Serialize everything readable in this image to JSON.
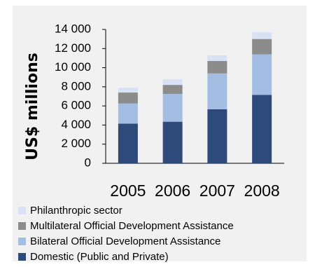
{
  "chart_data": {
    "type": "bar",
    "stacked": true,
    "categories": [
      "2005",
      "2006",
      "2007",
      "2008"
    ],
    "ylabel": "US$ millions",
    "ylim": [
      0,
      14000
    ],
    "yticks": [
      0,
      2000,
      4000,
      6000,
      8000,
      10000,
      12000,
      14000
    ],
    "ytick_labels": [
      "0",
      "2 000",
      "4 000",
      "6 000",
      "8 000",
      "10 000",
      "12 000",
      "14 000"
    ],
    "series": [
      {
        "name": "Domestic (Public and Private)",
        "color": "#2e4a7a",
        "values": [
          4150,
          4350,
          5650,
          7150
        ]
      },
      {
        "name": "Bilateral Official Development Assistance",
        "color": "#a4bde3",
        "values": [
          2100,
          2900,
          3750,
          4250
        ]
      },
      {
        "name": "Multilateral Official Development Assistance",
        "color": "#8c8c8c",
        "values": [
          1150,
          950,
          1300,
          1600
        ]
      },
      {
        "name": "Philanthropic sector",
        "color": "#d8e2f4",
        "values": [
          500,
          600,
          600,
          700
        ]
      }
    ],
    "legend_placement": "bottom",
    "grid": false
  }
}
